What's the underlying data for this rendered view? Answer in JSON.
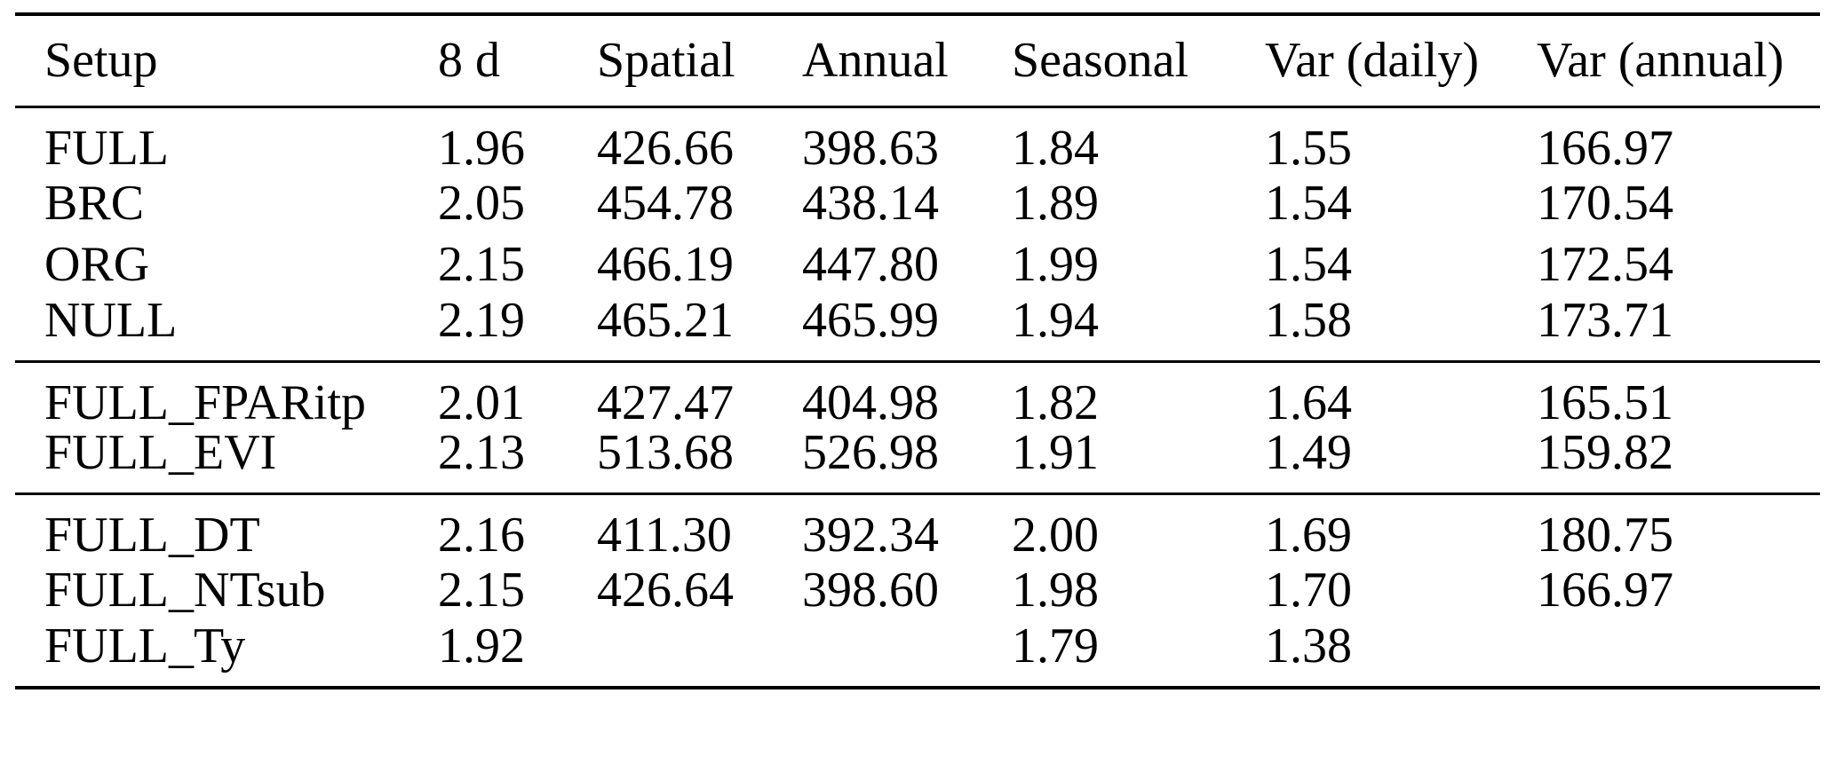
{
  "table": {
    "columns": [
      "Setup",
      "8 d",
      "Spatial",
      "Annual",
      "Seasonal",
      "Var (daily)",
      "Var (annual)"
    ],
    "sections": [
      {
        "rows": [
          {
            "setup": "FULL",
            "values": [
              "1.96",
              "426.66",
              "398.63",
              "1.84",
              "1.55",
              "166.97"
            ]
          },
          {
            "setup": "BRC",
            "values": [
              "2.05",
              "454.78",
              "438.14",
              "1.89",
              "1.54",
              "170.54"
            ]
          },
          {
            "setup": "ORG",
            "values": [
              "2.15",
              "466.19",
              "447.80",
              "1.99",
              "1.54",
              "172.54"
            ]
          },
          {
            "setup": "NULL",
            "values": [
              "2.19",
              "465.21",
              "465.99",
              "1.94",
              "1.58",
              "173.71"
            ]
          }
        ]
      },
      {
        "rows": [
          {
            "setup": "FULL_FPARitp",
            "values": [
              "2.01",
              "427.47",
              "404.98",
              "1.82",
              "1.64",
              "165.51"
            ]
          },
          {
            "setup": "FULL_EVI",
            "values": [
              "2.13",
              "513.68",
              "526.98",
              "1.91",
              "1.49",
              "159.82"
            ]
          }
        ]
      },
      {
        "rows": [
          {
            "setup": "FULL_DT",
            "values": [
              "2.16",
              "411.30",
              "392.34",
              "2.00",
              "1.69",
              "180.75"
            ]
          },
          {
            "setup": "FULL_NTsub",
            "values": [
              "2.15",
              "426.64",
              "398.60",
              "1.98",
              "1.70",
              "166.97"
            ]
          },
          {
            "setup": "FULL_Ty",
            "values": [
              "1.92",
              "",
              "",
              "1.79",
              "1.38",
              ""
            ]
          }
        ]
      }
    ],
    "style": {
      "rule_color": "#000000",
      "text_color": "#000000",
      "background": "#ffffff"
    }
  }
}
